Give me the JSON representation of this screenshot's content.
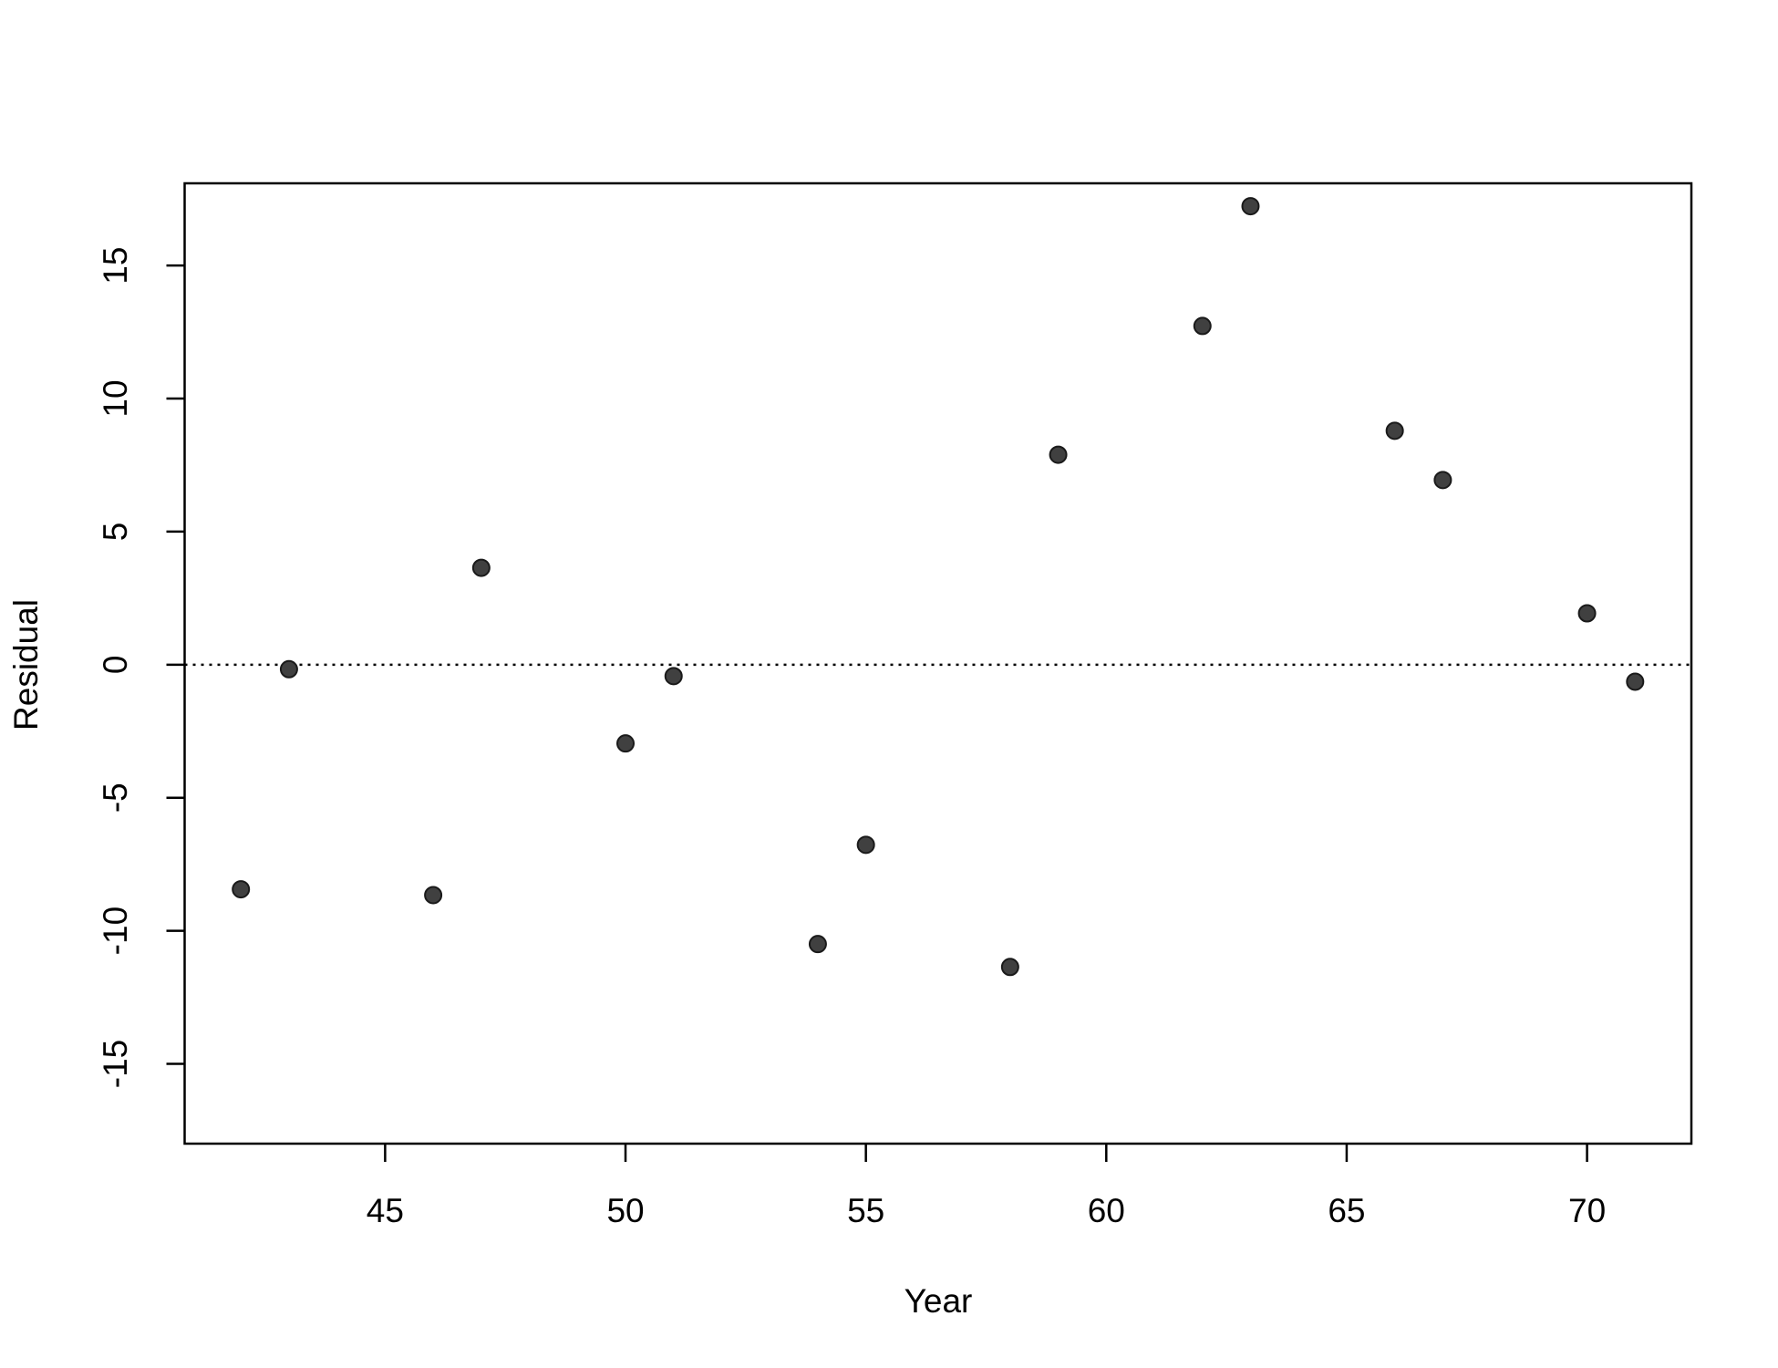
{
  "chart_data": {
    "type": "scatter",
    "x_label": "Year",
    "y_label": "Residual",
    "x": [
      42,
      43,
      46,
      47,
      50,
      51,
      54,
      55,
      58,
      59,
      62,
      63,
      66,
      67,
      70,
      71
    ],
    "series": [
      {
        "color": "#404040",
        "values": [
          -8.44,
          -0.17,
          -8.66,
          3.64,
          -2.96,
          -0.43,
          -10.5,
          -6.77,
          -11.36,
          7.89,
          12.73,
          17.23,
          8.79,
          6.94,
          1.93,
          -0.64
        ]
      }
    ],
    "xlim": [
      40.83,
      72.17
    ],
    "ylim": [
      -18,
      18.09
    ],
    "xticks": [
      45,
      50,
      55,
      60,
      65,
      70
    ],
    "yticks": [
      -15,
      -10,
      -5,
      0,
      5,
      10,
      15
    ],
    "hline": 0,
    "grid": false
  }
}
